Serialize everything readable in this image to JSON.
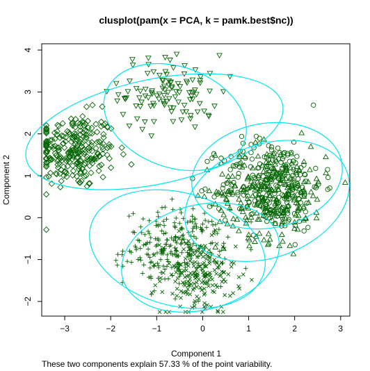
{
  "chart_data": {
    "type": "scatter",
    "title": "clusplot(pam(x = PCA, k = pamk.best$nc))",
    "xlabel": "Component 1",
    "ylabel": "Component 2",
    "caption": "These two components explain 57.33 % of the point variability.",
    "xlim": [
      -3.5,
      3.2
    ],
    "ylim": [
      -2.35,
      4.15
    ],
    "xticks": [
      -3,
      -2,
      -1,
      0,
      1,
      2,
      3
    ],
    "yticks": [
      -2,
      -1,
      0,
      1,
      2,
      3,
      4
    ],
    "point_color": "#006400",
    "ellipse_color": "#00e5ee",
    "grid": false,
    "legend": "none",
    "clusters": [
      {
        "marker": "diamond",
        "center": [
          -2.8,
          1.6
        ],
        "spread": [
          0.45,
          0.45
        ],
        "count": 260,
        "ellipse": {
          "center": [
            -1.05,
            2.05
          ],
          "rx": 2.85,
          "ry": 1.25,
          "angle_deg": 12
        }
      },
      {
        "marker": "triangle-down",
        "center": [
          -0.7,
          3.0
        ],
        "spread": [
          0.55,
          0.45
        ],
        "count": 110,
        "ellipse": {
          "center": [
            -0.6,
            2.4
          ],
          "rx": 1.6,
          "ry": 1.2,
          "angle_deg": -20
        }
      },
      {
        "marker": "plus",
        "center": [
          -0.6,
          -0.7
        ],
        "spread": [
          0.55,
          0.45
        ],
        "count": 240,
        "ellipse": {
          "center": [
            -0.55,
            -0.75
          ],
          "rx": 1.95,
          "ry": 1.35,
          "angle_deg": -15
        }
      },
      {
        "marker": "cross",
        "center": [
          -0.1,
          -1.4
        ],
        "spread": [
          0.4,
          0.45
        ],
        "count": 200,
        "ellipse": {
          "center": [
            -0.05,
            -0.95
          ],
          "rx": 1.75,
          "ry": 1.25,
          "angle_deg": 15
        }
      },
      {
        "marker": "circle",
        "center": [
          1.5,
          0.8
        ],
        "spread": [
          0.55,
          0.55
        ],
        "count": 260,
        "ellipse": {
          "center": [
            1.4,
            1.0
          ],
          "rx": 1.65,
          "ry": 1.25,
          "angle_deg": 10
        }
      },
      {
        "marker": "triangle-up",
        "center": [
          1.5,
          0.6
        ],
        "spread": [
          0.6,
          0.55
        ],
        "count": 240,
        "ellipse": {
          "center": [
            1.4,
            0.4
          ],
          "rx": 1.85,
          "ry": 1.35,
          "angle_deg": 20
        }
      }
    ]
  }
}
